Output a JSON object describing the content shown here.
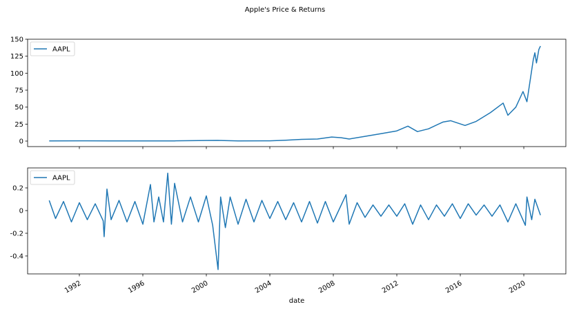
{
  "chart_data": [
    {
      "type": "line",
      "title": "Apple's Price & Returns",
      "x": [
        1990.1,
        1992.0,
        1994.0,
        1996.0,
        1998.0,
        2000.0,
        2000.7,
        2002.0,
        2004.0,
        2005.0,
        2006.0,
        2007.0,
        2007.9,
        2008.5,
        2009.0,
        2010.0,
        2011.0,
        2012.0,
        2012.7,
        2013.3,
        2014.0,
        2014.9,
        2015.4,
        2016.3,
        2017.0,
        2017.9,
        2018.7,
        2019.0,
        2019.5,
        2019.95,
        2020.2,
        2020.6,
        2020.7,
        2020.8,
        2020.95,
        2021.05
      ],
      "series": [
        {
          "name": "AAPL",
          "color": "#1f77b4",
          "values": [
            0.3,
            0.4,
            0.3,
            0.3,
            0.3,
            0.9,
            1.0,
            0.3,
            0.4,
            1.2,
            2.5,
            3,
            6,
            5,
            3,
            7,
            11,
            15,
            22,
            14,
            18,
            28,
            30,
            23,
            29,
            42,
            56,
            38,
            50,
            73,
            58,
            120,
            130,
            115,
            135,
            140
          ]
        }
      ],
      "xlim": [
        1988.74,
        2022.65
      ],
      "xticks": [
        1992,
        1996,
        2000,
        2004,
        2008,
        2012,
        2016,
        2020
      ],
      "ylim": [
        -8.1,
        150
      ],
      "yticks": [
        0,
        25,
        50,
        75,
        100,
        125,
        150
      ],
      "legend": "upper left"
    },
    {
      "type": "line",
      "xlabel": "date",
      "x": [
        1990.1,
        1990.5,
        1991.0,
        1991.5,
        1992.0,
        1992.5,
        1993.0,
        1993.5,
        1993.56,
        1993.74,
        1994.0,
        1994.5,
        1995.0,
        1995.5,
        1996.0,
        1996.48,
        1996.7,
        1997.0,
        1997.3,
        1997.57,
        1997.8,
        1998.0,
        1998.5,
        1999.0,
        1999.5,
        2000.0,
        2000.4,
        2000.74,
        2000.9,
        2001.2,
        2001.5,
        2002.0,
        2002.5,
        2003.0,
        2003.5,
        2004.0,
        2004.5,
        2005.0,
        2005.5,
        2006.0,
        2006.5,
        2007.0,
        2007.5,
        2008.0,
        2008.8,
        2009.0,
        2009.5,
        2010.0,
        2010.5,
        2011.0,
        2011.5,
        2012.0,
        2012.5,
        2013.0,
        2013.5,
        2014.0,
        2014.5,
        2015.0,
        2015.5,
        2016.0,
        2016.5,
        2017.0,
        2017.5,
        2018.0,
        2018.5,
        2019.0,
        2019.5,
        2020.1,
        2020.2,
        2020.5,
        2020.7,
        2021.05
      ],
      "series": [
        {
          "name": "AAPL",
          "color": "#1f77b4",
          "values": [
            0.09,
            -0.07,
            0.08,
            -0.1,
            0.07,
            -0.08,
            0.06,
            -0.09,
            -0.23,
            0.19,
            -0.08,
            0.09,
            -0.1,
            0.08,
            -0.12,
            0.23,
            -0.1,
            0.12,
            -0.1,
            0.33,
            -0.12,
            0.24,
            -0.1,
            0.12,
            -0.1,
            0.13,
            -0.13,
            -0.52,
            0.12,
            -0.15,
            0.12,
            -0.12,
            0.1,
            -0.1,
            0.09,
            -0.07,
            0.08,
            -0.08,
            0.07,
            -0.1,
            0.08,
            -0.11,
            0.08,
            -0.1,
            0.14,
            -0.12,
            0.07,
            -0.06,
            0.05,
            -0.05,
            0.05,
            -0.05,
            0.06,
            -0.12,
            0.05,
            -0.08,
            0.05,
            -0.05,
            0.06,
            -0.07,
            0.06,
            -0.04,
            0.05,
            -0.05,
            0.05,
            -0.1,
            0.06,
            -0.13,
            0.12,
            -0.08,
            0.1,
            -0.04
          ]
        }
      ],
      "xlim": [
        1988.74,
        2022.65
      ],
      "xticks": [
        1992,
        1996,
        2000,
        2004,
        2008,
        2012,
        2016,
        2020
      ],
      "ylim": [
        -0.558,
        0.376
      ],
      "yticks": [
        0.2,
        0.0,
        -0.2,
        -0.4
      ],
      "legend": "upper left"
    }
  ]
}
